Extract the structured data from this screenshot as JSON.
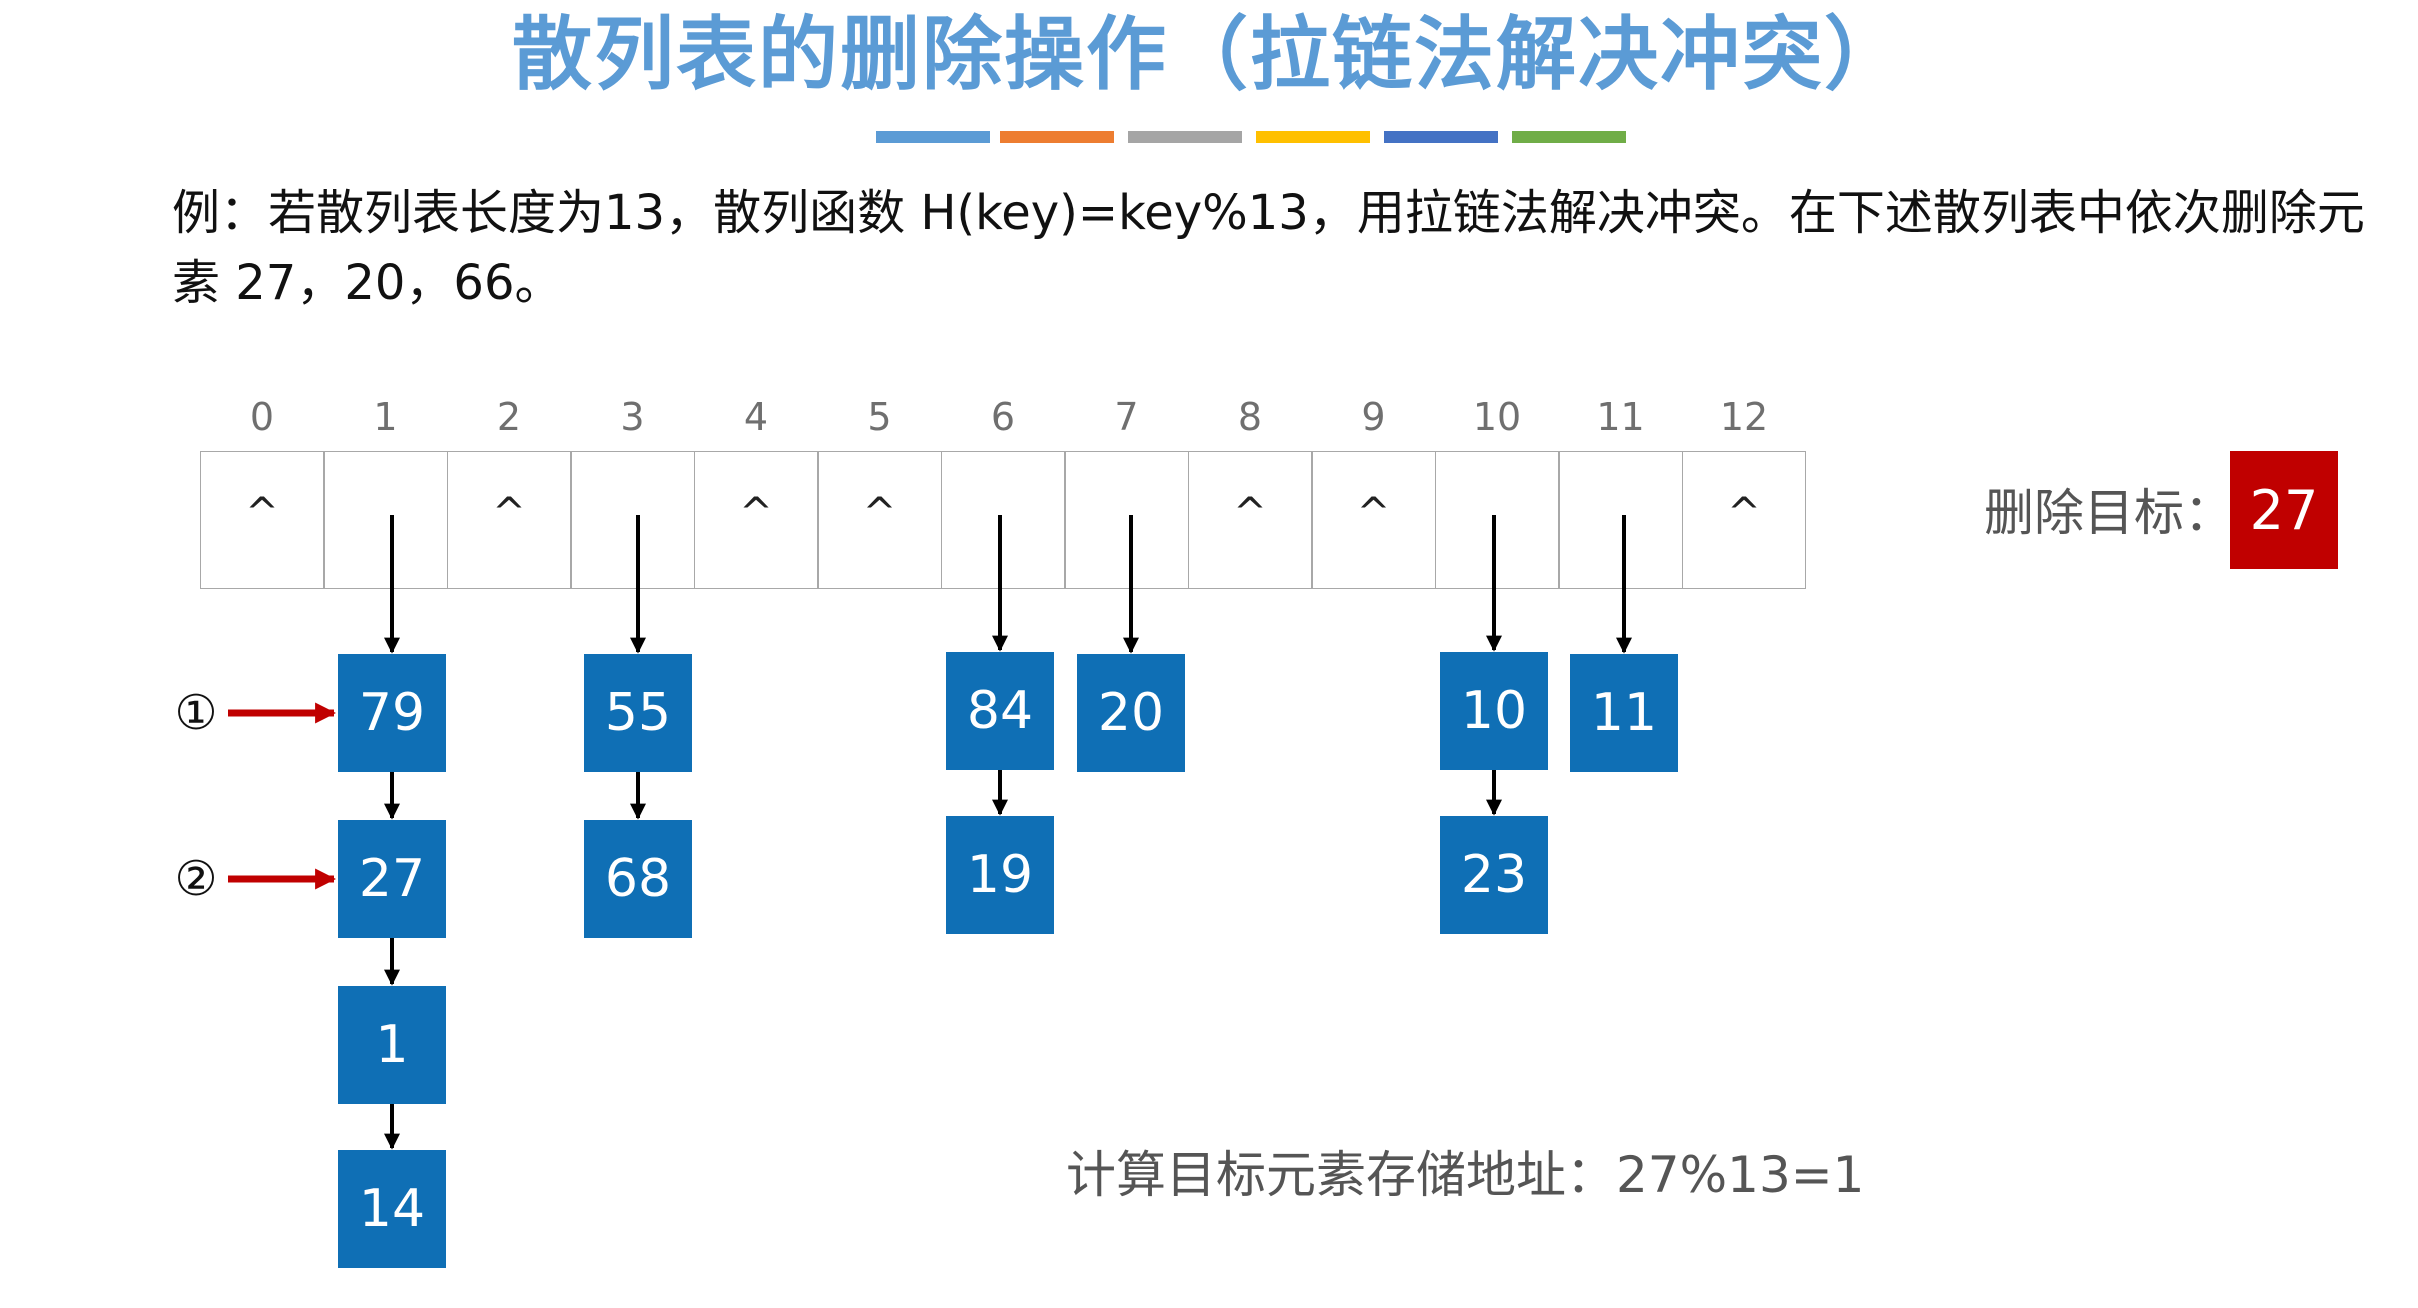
{
  "title": "散列表的删除操作（拉链法解决冲突）",
  "colors": {
    "title": "#5b9bd5",
    "node_fill": "#0f6fb5",
    "target_fill": "#c00000",
    "marker_arrow": "#c00000",
    "bars": [
      "#5b9bd5",
      "#ed7d31",
      "#a5a5a5",
      "#ffc000",
      "#4472c4",
      "#70ad47"
    ]
  },
  "problem": {
    "line1": "例：若散列表长度为13，散列函数 H(key)=key%13，用拉链法解决冲突。在下述散列表中依次删除元",
    "line2": "素 27，20，66。"
  },
  "table": {
    "indices": [
      "0",
      "1",
      "2",
      "3",
      "4",
      "5",
      "6",
      "7",
      "8",
      "9",
      "10",
      "11",
      "12"
    ],
    "null_symbol": "^",
    "slots": [
      {
        "index": 0,
        "chain": []
      },
      {
        "index": 1,
        "chain": [
          "79",
          "27",
          "1",
          "14"
        ]
      },
      {
        "index": 2,
        "chain": []
      },
      {
        "index": 3,
        "chain": [
          "55",
          "68"
        ]
      },
      {
        "index": 4,
        "chain": []
      },
      {
        "index": 5,
        "chain": []
      },
      {
        "index": 6,
        "chain": [
          "84",
          "19"
        ]
      },
      {
        "index": 7,
        "chain": [
          "20"
        ]
      },
      {
        "index": 8,
        "chain": []
      },
      {
        "index": 9,
        "chain": []
      },
      {
        "index": 10,
        "chain": [
          "10",
          "23"
        ]
      },
      {
        "index": 11,
        "chain": [
          "11"
        ]
      },
      {
        "index": 12,
        "chain": []
      }
    ]
  },
  "markers": [
    {
      "label": "①",
      "chain_slot": 1,
      "node_position": 0
    },
    {
      "label": "②",
      "chain_slot": 1,
      "node_position": 1
    }
  ],
  "delete_target": {
    "label": "删除目标：",
    "value": "27"
  },
  "calculation": "计算目标元素存储地址：27%13=1"
}
